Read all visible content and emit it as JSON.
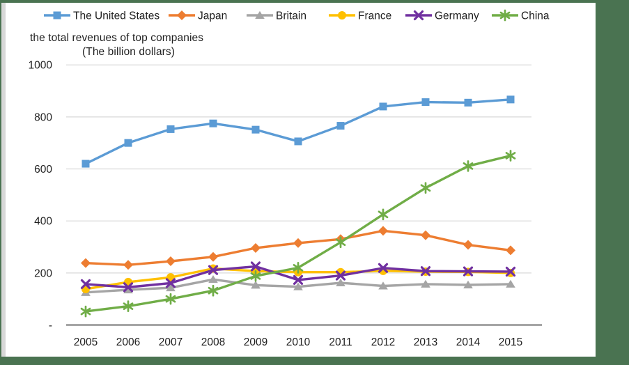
{
  "frame": {
    "border_color": "#4A7351",
    "inner_strip_color": "#D8D8D8"
  },
  "title": {
    "line1": "the total revenues of top companies",
    "line2": "(The billion dollars)"
  },
  "axes": {
    "y_ticks": [
      {
        "label": "1000",
        "value": 1000
      },
      {
        "label": "800",
        "value": 800
      },
      {
        "label": "600",
        "value": 600
      },
      {
        "label": "400",
        "value": 400
      },
      {
        "label": "200",
        "value": 200
      },
      {
        "label": "-",
        "value": 0
      }
    ],
    "x_labels": [
      "2005",
      "2006",
      "2007",
      "2008",
      "2009",
      "2010",
      "2011",
      "2012",
      "2013",
      "2014",
      "2015"
    ]
  },
  "colors": {
    "gridline": "#D9D9D9",
    "axis_line": "#A6A6A6",
    "text": "#1f1f1f"
  },
  "chart_data": {
    "type": "line",
    "title": "the total revenues of top companies (The billion dollars)",
    "x": [
      2005,
      2006,
      2007,
      2008,
      2009,
      2010,
      2011,
      2012,
      2013,
      2014,
      2015
    ],
    "xlabel": "",
    "ylabel": "The billion dollars",
    "ylim": [
      0,
      1000
    ],
    "y_tick_step": 200,
    "grid": "horizontal",
    "legend_position": "top",
    "series": [
      {
        "name": "The United States",
        "color": "#5B9BD5",
        "marker": "square",
        "values": [
          620,
          700,
          753,
          775,
          751,
          706,
          766,
          840,
          857,
          855,
          867
        ]
      },
      {
        "name": "Japan",
        "color": "#ED7D31",
        "marker": "diamond",
        "values": [
          238,
          231,
          245,
          262,
          296,
          315,
          330,
          362,
          345,
          308,
          287
        ]
      },
      {
        "name": "Britain",
        "color": "#A5A5A5",
        "marker": "triangle",
        "values": [
          125,
          135,
          143,
          175,
          153,
          147,
          162,
          150,
          157,
          154,
          157
        ]
      },
      {
        "name": "France",
        "color": "#FFC000",
        "marker": "circle",
        "values": [
          138,
          165,
          183,
          217,
          207,
          203,
          203,
          208,
          205,
          204,
          200
        ]
      },
      {
        "name": "Germany",
        "color": "#7030A0",
        "marker": "x",
        "values": [
          157,
          145,
          161,
          211,
          225,
          173,
          190,
          219,
          207,
          206,
          205
        ]
      },
      {
        "name": "China",
        "color": "#70AD47",
        "marker": "asterisk",
        "values": [
          52,
          72,
          100,
          132,
          188,
          220,
          318,
          425,
          527,
          611,
          651
        ]
      }
    ]
  }
}
